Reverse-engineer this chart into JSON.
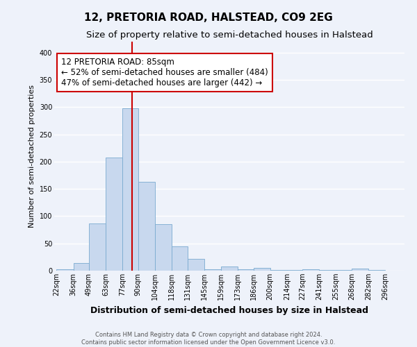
{
  "title": "12, PRETORIA ROAD, HALSTEAD, CO9 2EG",
  "subtitle": "Size of property relative to semi-detached houses in Halstead",
  "xlabel": "Distribution of semi-detached houses by size in Halstead",
  "ylabel": "Number of semi-detached properties",
  "footer_line1": "Contains HM Land Registry data © Crown copyright and database right 2024.",
  "footer_line2": "Contains public sector information licensed under the Open Government Licence v3.0.",
  "bin_labels": [
    "22sqm",
    "36sqm",
    "49sqm",
    "63sqm",
    "77sqm",
    "90sqm",
    "104sqm",
    "118sqm",
    "131sqm",
    "145sqm",
    "159sqm",
    "173sqm",
    "186sqm",
    "200sqm",
    "214sqm",
    "227sqm",
    "241sqm",
    "255sqm",
    "268sqm",
    "282sqm",
    "296sqm"
  ],
  "bin_edges": [
    22,
    36,
    49,
    63,
    77,
    90,
    104,
    118,
    131,
    145,
    159,
    173,
    186,
    200,
    214,
    227,
    241,
    255,
    268,
    282,
    296
  ],
  "bar_heights": [
    3,
    14,
    87,
    208,
    298,
    163,
    85,
    45,
    22,
    3,
    8,
    3,
    5,
    1,
    1,
    3,
    1,
    1,
    4,
    1
  ],
  "bar_color": "#c8d8ee",
  "bar_edge_color": "#7aaad0",
  "property_size": 85,
  "vline_color": "#cc0000",
  "annotation_title": "12 PRETORIA ROAD: 85sqm",
  "annotation_line1": "← 52% of semi-detached houses are smaller (484)",
  "annotation_line2": "47% of semi-detached houses are larger (442) →",
  "annotation_box_color": "#ffffff",
  "annotation_box_edge_color": "#cc0000",
  "ylim": [
    0,
    420
  ],
  "yticks": [
    0,
    50,
    100,
    150,
    200,
    250,
    300,
    350,
    400
  ],
  "background_color": "#eef2fa",
  "grid_color": "#ffffff",
  "title_fontsize": 11,
  "subtitle_fontsize": 9.5,
  "xlabel_fontsize": 9,
  "ylabel_fontsize": 8,
  "tick_fontsize": 7,
  "annotation_fontsize": 8.5
}
